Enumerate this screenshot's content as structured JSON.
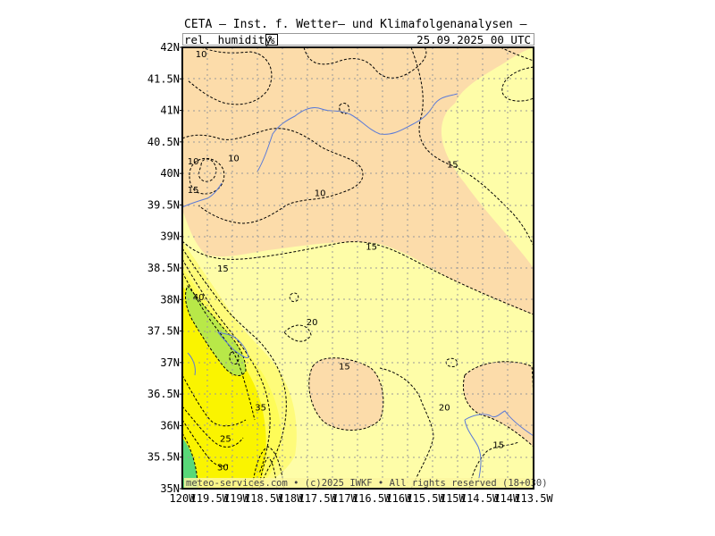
{
  "header": {
    "title": "CETA — Inst. f. Wetter— und Klimafolgenanalysen —",
    "parameter": "rel. humidity",
    "unit": "%",
    "datetime": "25.09.2025 00 UTC"
  },
  "footer": {
    "copyright": "meteo-services.com • (c)2025 IWKF • All rights reserved (18+030)"
  },
  "axes": {
    "lat_labels": [
      "42N",
      "41.5N",
      "41N",
      "40.5N",
      "40N",
      "39.5N",
      "39N",
      "38.5N",
      "38N",
      "37.5N",
      "37N",
      "36.5N",
      "36N",
      "35.5N",
      "35N"
    ],
    "lon_labels": [
      "120W",
      "119.5W",
      "119W",
      "118.5W",
      "118W",
      "117.5W",
      "117W",
      "116.5W",
      "116W",
      "115.5W",
      "115W",
      "114.5W",
      "114W",
      "113.5W"
    ]
  },
  "contour_labels": [
    {
      "text": "10",
      "lon": -119.65,
      "lat": 41.9
    },
    {
      "text": "10",
      "lon": -119.8,
      "lat": 40.2
    },
    {
      "text": "10",
      "lon": -119.05,
      "lat": 40.25
    },
    {
      "text": "10",
      "lon": -117.45,
      "lat": 39.7
    },
    {
      "text": "15",
      "lon": -119.8,
      "lat": 39.75
    },
    {
      "text": "15",
      "lon": -116.5,
      "lat": 38.85
    },
    {
      "text": "15",
      "lon": -115.0,
      "lat": 40.15
    },
    {
      "text": "15",
      "lon": -119.25,
      "lat": 38.5
    },
    {
      "text": "40",
      "lon": -119.7,
      "lat": 38.05
    },
    {
      "text": "20",
      "lon": -117.6,
      "lat": 37.65
    },
    {
      "text": "15",
      "lon": -117.0,
      "lat": 36.95
    },
    {
      "text": "35",
      "lon": -118.55,
      "lat": 36.3
    },
    {
      "text": "20",
      "lon": -115.15,
      "lat": 36.3
    },
    {
      "text": "25",
      "lon": -119.2,
      "lat": 35.8
    },
    {
      "text": "30",
      "lon": -119.25,
      "lat": 35.35
    },
    {
      "text": "15",
      "lon": -114.15,
      "lat": 35.7
    }
  ],
  "legend_colors": {
    "lt10": "#fcdcaa",
    "10to15": "#fbe2b0",
    "15to20": "#fefda8",
    "20to25": "#fefb7a",
    "25to30": "#fefc58",
    "30to40": "#faf400",
    "40plus": "#b8e848",
    "45plus": "#58d878",
    "water": "#5a7ad8"
  }
}
